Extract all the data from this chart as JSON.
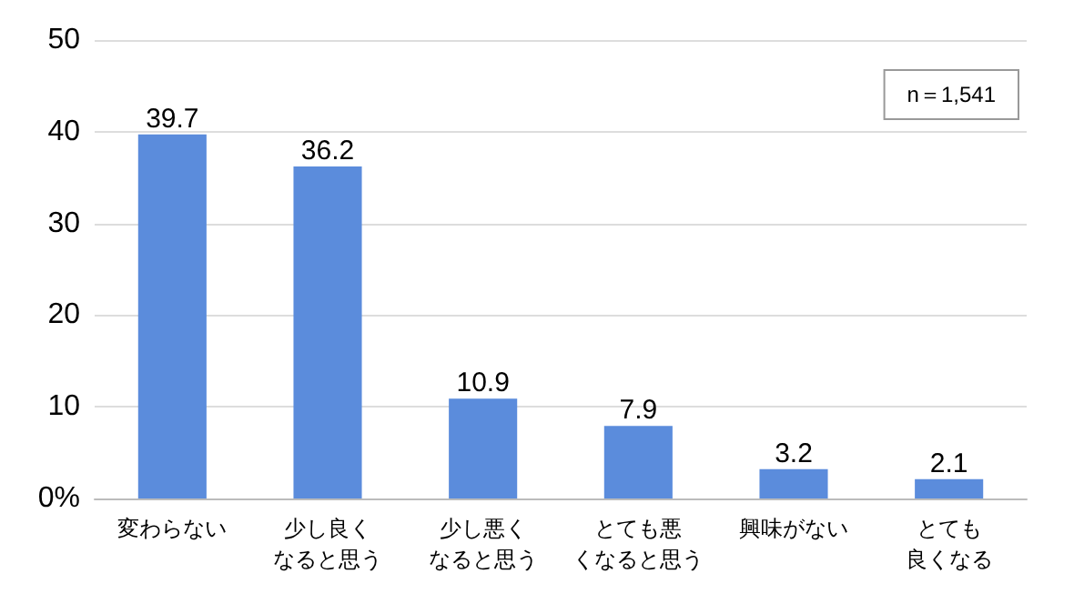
{
  "chart_data": {
    "type": "bar",
    "categories": [
      "変わらない",
      "少し良くなると思う",
      "少し悪くなると思う",
      "とても悪くなると思う",
      "興味がない",
      "とても良くなる"
    ],
    "values": [
      39.7,
      36.2,
      10.9,
      7.9,
      3.2,
      2.1
    ],
    "color": "#5b8cdc",
    "ylim": [
      0,
      50
    ],
    "yticks": [
      {
        "value": 0,
        "label": "0%"
      },
      10,
      20,
      30,
      40,
      50
    ],
    "grid": "y",
    "data_labels": true,
    "annotations": [
      "n＝1,541"
    ]
  }
}
